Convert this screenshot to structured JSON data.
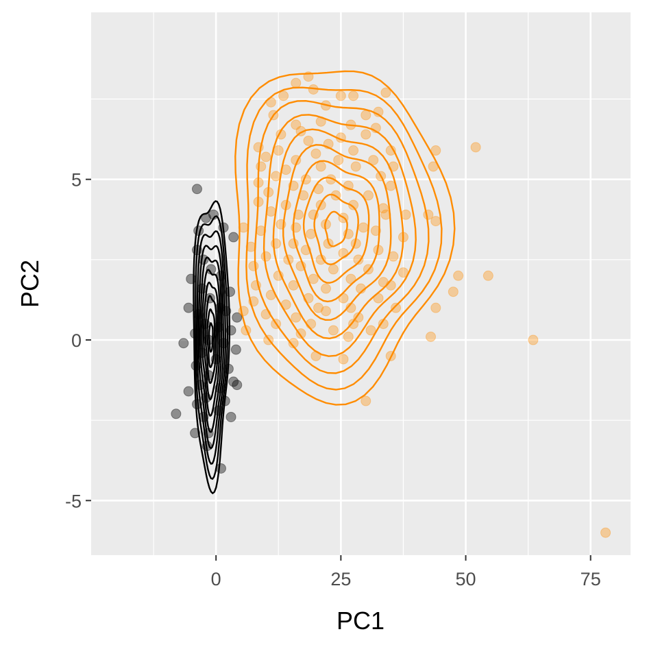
{
  "chart_data": {
    "type": "scatter",
    "title": "",
    "xlabel": "PC1",
    "ylabel": "PC2",
    "xlim": [
      -25,
      83
    ],
    "ylim": [
      -6.7,
      10.2
    ],
    "x_ticks": [
      0,
      25,
      50,
      75
    ],
    "y_ticks": [
      -5,
      0,
      5
    ],
    "grid": true,
    "legend": "none",
    "overlay": "2d density contours per series",
    "series": [
      {
        "color": "#000000",
        "point_alpha": 0.4,
        "points": [
          [
            -3.8,
            4.7
          ],
          [
            -2.0,
            3.8
          ],
          [
            -0.5,
            3.9
          ],
          [
            1.5,
            3.5
          ],
          [
            -3.5,
            3.4
          ],
          [
            3.5,
            3.2
          ],
          [
            -3.8,
            2.8
          ],
          [
            -2.5,
            2.5
          ],
          [
            -1.0,
            2.2
          ],
          [
            1.0,
            2.0
          ],
          [
            -5.0,
            1.9
          ],
          [
            -2.8,
            1.6
          ],
          [
            2.8,
            1.5
          ],
          [
            -1.2,
            1.3
          ],
          [
            0.8,
            1.0
          ],
          [
            -5.5,
            1.0
          ],
          [
            -3.5,
            0.8
          ],
          [
            2.0,
            0.9
          ],
          [
            4.2,
            0.7
          ],
          [
            -2.2,
            0.5
          ],
          [
            0.5,
            0.4
          ],
          [
            -4.2,
            0.2
          ],
          [
            3.0,
            0.3
          ],
          [
            -1.5,
            0.0
          ],
          [
            -6.5,
            -0.1
          ],
          [
            1.5,
            -0.1
          ],
          [
            4.0,
            -0.3
          ],
          [
            -2.8,
            -0.4
          ],
          [
            0.0,
            -0.6
          ],
          [
            -4.0,
            -0.8
          ],
          [
            2.5,
            -0.9
          ],
          [
            -1.5,
            -1.1
          ],
          [
            3.5,
            -1.3
          ],
          [
            -3.2,
            -1.4
          ],
          [
            0.8,
            -1.5
          ],
          [
            4.2,
            -1.4
          ],
          [
            -5.5,
            -1.6
          ],
          [
            -2.0,
            -1.8
          ],
          [
            1.8,
            -1.9
          ],
          [
            -3.8,
            -2.0
          ],
          [
            0.5,
            -2.2
          ],
          [
            -8.0,
            -2.3
          ],
          [
            -2.5,
            -2.4
          ],
          [
            3.0,
            -2.4
          ],
          [
            -4.2,
            -2.9
          ],
          [
            -1.5,
            -2.9
          ],
          [
            -1.8,
            -3.3
          ],
          [
            1.0,
            -4.0
          ]
        ]
      },
      {
        "color": "#ff8c00",
        "point_alpha": 0.35,
        "points": [
          [
            18.5,
            8.2
          ],
          [
            16.0,
            8.0
          ],
          [
            19.5,
            7.8
          ],
          [
            13.5,
            7.6
          ],
          [
            25.0,
            7.6
          ],
          [
            27.5,
            7.6
          ],
          [
            34.0,
            7.7
          ],
          [
            11.0,
            7.4
          ],
          [
            22.0,
            7.3
          ],
          [
            30.0,
            7.0
          ],
          [
            32.5,
            7.1
          ],
          [
            11.5,
            7.0
          ],
          [
            16.0,
            6.7
          ],
          [
            21.0,
            6.8
          ],
          [
            27.0,
            6.7
          ],
          [
            32.0,
            6.6
          ],
          [
            13.0,
            6.4
          ],
          [
            17.0,
            6.5
          ],
          [
            25.0,
            6.3
          ],
          [
            30.0,
            6.4
          ],
          [
            18.5,
            6.2
          ],
          [
            22.5,
            6.1
          ],
          [
            8.5,
            6.0
          ],
          [
            12.5,
            5.9
          ],
          [
            20.0,
            5.8
          ],
          [
            27.5,
            5.9
          ],
          [
            35.0,
            5.9
          ],
          [
            44.0,
            5.9
          ],
          [
            52.0,
            6.0
          ],
          [
            10.0,
            5.7
          ],
          [
            16.0,
            5.6
          ],
          [
            24.5,
            5.6
          ],
          [
            31.5,
            5.6
          ],
          [
            9.0,
            5.4
          ],
          [
            14.0,
            5.3
          ],
          [
            21.0,
            5.4
          ],
          [
            28.0,
            5.4
          ],
          [
            35.5,
            5.4
          ],
          [
            43.5,
            5.4
          ],
          [
            12.0,
            5.1
          ],
          [
            18.0,
            5.0
          ],
          [
            23.0,
            5.0
          ],
          [
            33.0,
            5.1
          ],
          [
            8.5,
            4.9
          ],
          [
            15.5,
            4.8
          ],
          [
            20.5,
            4.7
          ],
          [
            26.5,
            4.8
          ],
          [
            35.0,
            4.8
          ],
          [
            10.5,
            4.6
          ],
          [
            17.5,
            4.5
          ],
          [
            24.0,
            4.5
          ],
          [
            30.5,
            4.5
          ],
          [
            8.5,
            4.3
          ],
          [
            14.0,
            4.2
          ],
          [
            21.0,
            4.2
          ],
          [
            27.5,
            4.2
          ],
          [
            33.5,
            4.1
          ],
          [
            38.0,
            3.9
          ],
          [
            42.5,
            3.9
          ],
          [
            44.0,
            3.7
          ],
          [
            11.0,
            4.0
          ],
          [
            16.5,
            3.9
          ],
          [
            19.5,
            3.9
          ],
          [
            25.5,
            3.8
          ],
          [
            34.0,
            3.9
          ],
          [
            13.0,
            3.6
          ],
          [
            16.0,
            3.5
          ],
          [
            22.0,
            3.6
          ],
          [
            29.5,
            3.5
          ],
          [
            5.5,
            3.5
          ],
          [
            9.0,
            3.4
          ],
          [
            19.0,
            3.3
          ],
          [
            26.5,
            3.3
          ],
          [
            32.0,
            3.4
          ],
          [
            37.5,
            3.2
          ],
          [
            12.0,
            3.0
          ],
          [
            15.5,
            3.0
          ],
          [
            22.5,
            3.0
          ],
          [
            28.0,
            3.0
          ],
          [
            7.0,
            2.9
          ],
          [
            18.0,
            2.8
          ],
          [
            25.5,
            2.7
          ],
          [
            32.5,
            2.8
          ],
          [
            10.0,
            2.6
          ],
          [
            14.5,
            2.5
          ],
          [
            21.0,
            2.5
          ],
          [
            28.5,
            2.5
          ],
          [
            35.5,
            2.6
          ],
          [
            7.5,
            2.3
          ],
          [
            17.0,
            2.3
          ],
          [
            23.5,
            2.2
          ],
          [
            30.5,
            2.2
          ],
          [
            37.5,
            2.1
          ],
          [
            12.5,
            2.0
          ],
          [
            19.5,
            1.9
          ],
          [
            27.0,
            1.9
          ],
          [
            48.5,
            2.0
          ],
          [
            54.5,
            2.0
          ],
          [
            8.0,
            1.7
          ],
          [
            15.5,
            1.7
          ],
          [
            22.0,
            1.6
          ],
          [
            29.0,
            1.6
          ],
          [
            33.5,
            1.8
          ],
          [
            35.0,
            1.7
          ],
          [
            47.5,
            1.5
          ],
          [
            11.0,
            1.4
          ],
          [
            18.5,
            1.3
          ],
          [
            25.5,
            1.3
          ],
          [
            32.5,
            1.3
          ],
          [
            7.5,
            1.2
          ],
          [
            14.0,
            1.1
          ],
          [
            20.5,
            1.0
          ],
          [
            27.0,
            1.0
          ],
          [
            36.0,
            1.0
          ],
          [
            44.0,
            1.0
          ],
          [
            5.5,
            0.9
          ],
          [
            10.0,
            0.8
          ],
          [
            16.0,
            0.7
          ],
          [
            22.0,
            0.9
          ],
          [
            28.5,
            0.7
          ],
          [
            12.0,
            0.5
          ],
          [
            19.0,
            0.5
          ],
          [
            27.5,
            0.5
          ],
          [
            33.5,
            0.5
          ],
          [
            6.0,
            0.3
          ],
          [
            17.0,
            0.2
          ],
          [
            23.5,
            0.3
          ],
          [
            31.0,
            0.3
          ],
          [
            10.5,
            0.0
          ],
          [
            26.5,
            0.1
          ],
          [
            43.0,
            0.1
          ],
          [
            63.5,
            0.0
          ],
          [
            15.5,
            -0.1
          ],
          [
            20.0,
            -0.5
          ],
          [
            25.5,
            -0.6
          ],
          [
            35.0,
            -0.5
          ],
          [
            30.0,
            -1.9
          ],
          [
            78.0,
            -6.0
          ]
        ]
      }
    ]
  }
}
